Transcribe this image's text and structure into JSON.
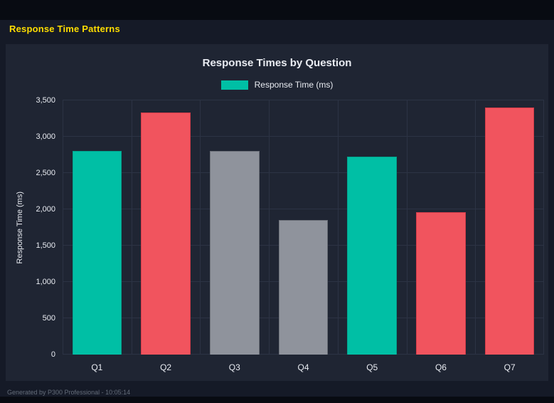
{
  "page": {
    "title": "Response Time Patterns",
    "footer": "Generated by P300 Professional - 10:05:14"
  },
  "chart_data": {
    "type": "bar",
    "title": "Response Times by Question",
    "legend": [
      {
        "label": "Response Time (ms)",
        "color": "#00bfa5"
      }
    ],
    "legend_position": "top",
    "categories": [
      "Q1",
      "Q2",
      "Q3",
      "Q4",
      "Q5",
      "Q6",
      "Q7"
    ],
    "values": [
      2800,
      3330,
      2800,
      1850,
      2730,
      1960,
      3400
    ],
    "bar_colors": [
      "#00bfa5",
      "#f1545e",
      "#8f939c",
      "#8f939c",
      "#00bfa5",
      "#f1545e",
      "#f1545e"
    ],
    "bar_border_colors": [
      "#00a38e",
      "#d23c49",
      "#6c7079",
      "#6c7079",
      "#00a38e",
      "#d23c49",
      "#d23c49"
    ],
    "xlabel": "",
    "ylabel": "Response Time (ms)",
    "ylim": [
      0,
      3500
    ],
    "yticks": [
      0,
      500,
      1000,
      1500,
      2000,
      2500,
      3000,
      3500
    ],
    "ytick_labels": [
      "0",
      "500",
      "1,000",
      "1,500",
      "2,000",
      "2,500",
      "3,000",
      "3,500"
    ],
    "grid": true
  },
  "colors": {
    "page_background": "#151a27",
    "panel_background": "#1f2533",
    "strip_background": "#080b12",
    "grid": "#2c3344",
    "text": "#e9ecf2",
    "accent_title": "#ffdd00",
    "footer_text": "#646c79"
  }
}
